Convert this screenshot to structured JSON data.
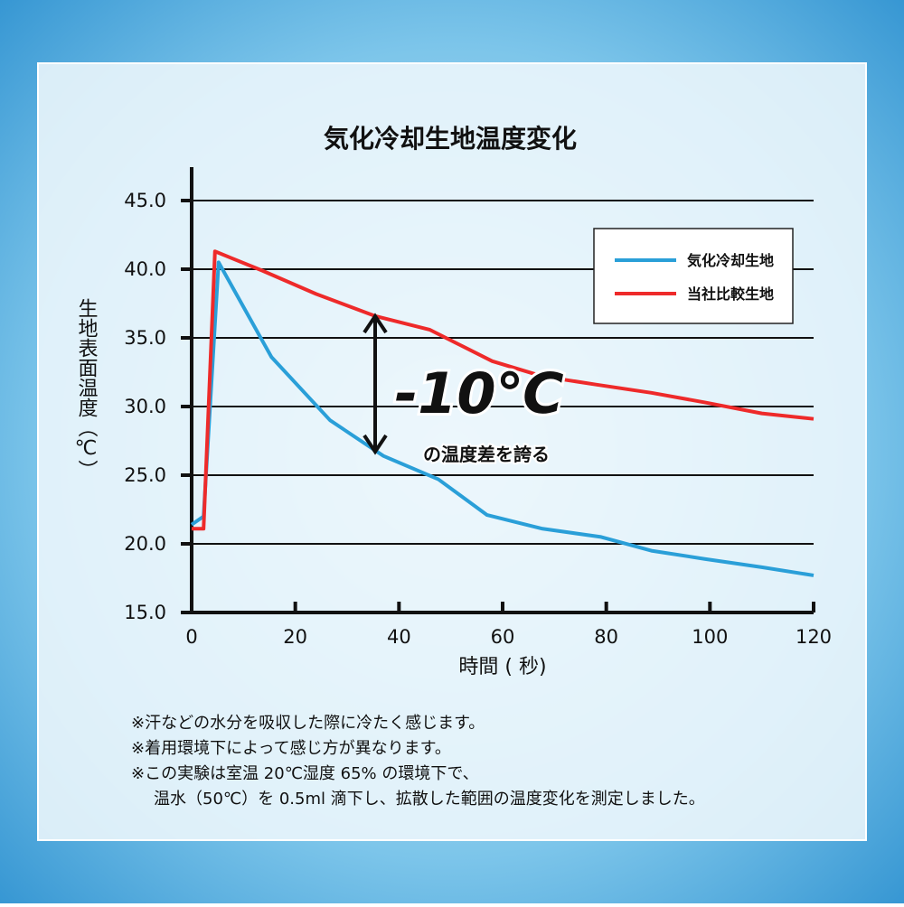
{
  "chart_data": {
    "type": "line",
    "title": "気化冷却生地温度変化",
    "xlabel": "時間 ( 秒)",
    "ylabel": "生地表面温度（℃）",
    "series": [
      {
        "name": "気化冷却生地",
        "color": "#2a9fd8",
        "x": [
          0,
          2.3,
          5.2,
          15.4,
          26.7,
          37,
          47.6,
          57,
          67.7,
          79,
          88.7,
          99,
          110,
          120
        ],
        "values": [
          21.4,
          22,
          40.5,
          33.6,
          29,
          26.4,
          24.7,
          22.1,
          21.1,
          20.5,
          19.5,
          18.9,
          18.3,
          17.7
        ]
      },
      {
        "name": "当社比較生地",
        "color": "#ee2a2a",
        "x": [
          0,
          2.3,
          4.5,
          13.6,
          24,
          35.3,
          45.9,
          58,
          67.7,
          78,
          88.7,
          99,
          110,
          120
        ],
        "values": [
          21.1,
          21.1,
          41.3,
          39.9,
          38.2,
          36.6,
          35.6,
          33.3,
          32.2,
          31.6,
          31,
          30.3,
          29.5,
          29.1
        ]
      }
    ],
    "xlim": [
      0,
      120
    ],
    "xticks": [
      0,
      20,
      40,
      60,
      80,
      100,
      120
    ],
    "ylim": [
      15,
      45
    ],
    "yticks": [
      {
        "value": 15,
        "label": "15.0"
      },
      {
        "value": 20,
        "label": "20.0"
      },
      {
        "value": 25,
        "label": "25.0"
      },
      {
        "value": 30,
        "label": "30.0"
      },
      {
        "value": 35,
        "label": "35.0"
      },
      {
        "value": 40,
        "label": "40.0"
      },
      {
        "value": 45,
        "label": "45.0"
      }
    ],
    "grid": true,
    "legend": "upper right",
    "annotations": [
      "-10℃",
      "の温度差を誇る"
    ],
    "notes": [
      "※汗などの水分を吸収した際に冷たく感じます。",
      "※着用環境下によって感じ方が異なります。",
      "※この実験は室温 20℃湿度 65% の環境下で、",
      "温水（50℃）を 0.5ml 滴下し、拡散した範囲の温度変化を測定しました。"
    ]
  }
}
